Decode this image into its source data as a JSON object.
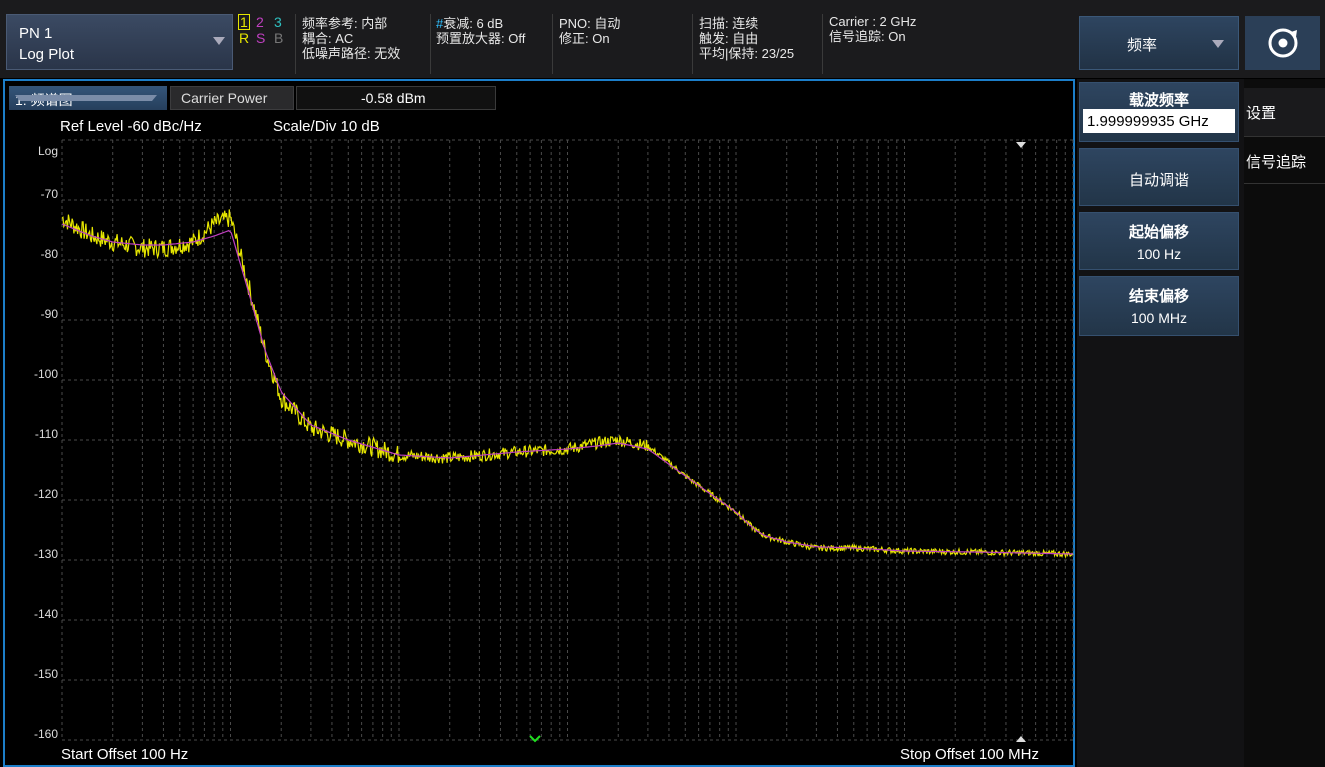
{
  "mode": {
    "line1": "PN 1",
    "line2": "Log Plot"
  },
  "traces": {
    "t1": "1",
    "t2": "2",
    "t3": "3",
    "r": "R",
    "s": "S",
    "b": "B"
  },
  "status": {
    "freq_ref": "频率参考: 内部",
    "coupling": "耦合: AC",
    "low_noise": "低噪声路径: 无效",
    "atten": "#衰减: 6 dB",
    "preamp": "预置放大器: Off",
    "pno": "PNO: 自动",
    "correction": "修正:  On",
    "sweep": "扫描: 连续",
    "trigger": "触发: 自由",
    "avg_hold": "平均|保持: 23/25",
    "carrier": "Carrier : 2 GHz",
    "tracking": "信号追踪: On"
  },
  "menu": {
    "freq_label": "频率",
    "config_icon": "settings-refresh-icon"
  },
  "plot": {
    "trace_select": "1: 频谱图",
    "meas_label": "Carrier Power",
    "meas_value": "-0.58 dBm",
    "ref_level": "Ref Level  -60 dBc/Hz",
    "scale_div": "Scale/Div  10 dB",
    "y_scale_type": "Log",
    "y_labels": [
      "-70",
      "-80",
      "-90",
      "-100",
      "-110",
      "-120",
      "-130",
      "-140",
      "-150",
      "-160"
    ],
    "start_offset": "Start Offset  100 Hz",
    "stop_offset": "Stop Offset  100 MHz"
  },
  "chart_data": {
    "type": "line",
    "x_scale": "log",
    "xlim": [
      100,
      100000000
    ],
    "ylim": [
      -160,
      -60
    ],
    "series": [
      {
        "color": "#e6e600",
        "x": [
          100,
          150,
          200,
          300,
          400,
          600,
          800,
          1000,
          1300,
          1600,
          2000,
          3000,
          5000,
          10000,
          20000,
          50000,
          100000,
          150000,
          200000,
          300000,
          500000,
          1000000,
          1300000,
          1500000,
          2000000,
          3000000,
          5000000,
          10000000,
          30000000,
          100000000
        ],
        "y": [
          -73,
          -76,
          -77,
          -78,
          -78,
          -77,
          -74,
          -73,
          -85,
          -95,
          -103,
          -108,
          -110,
          -112.5,
          -113,
          -112,
          -111.5,
          -110.5,
          -110,
          -111,
          -116,
          -122,
          -125,
          -126,
          -127,
          -128,
          -128,
          -128.5,
          -128.7,
          -129
        ]
      },
      {
        "color": "#c040c0",
        "x": [
          100,
          150,
          200,
          300,
          400,
          600,
          800,
          1000,
          1300,
          1600,
          2000,
          3000,
          5000,
          10000,
          20000,
          50000,
          100000,
          150000,
          200000,
          300000,
          500000,
          1000000,
          1300000,
          1500000,
          2000000,
          3000000,
          5000000,
          10000000,
          30000000,
          100000000
        ],
        "y": [
          -74,
          -76,
          -77,
          -77.5,
          -77.5,
          -77,
          -76,
          -75,
          -86,
          -95,
          -102,
          -107.5,
          -110,
          -112.5,
          -113,
          -112,
          -111.5,
          -111,
          -110.5,
          -111.5,
          -116,
          -122,
          -125,
          -126,
          -127,
          -127.8,
          -128,
          -128.5,
          -128.7,
          -129
        ]
      }
    ]
  },
  "side": {
    "carrier_freq_label": "载波频率",
    "carrier_freq_value": "1.999999935 GHz",
    "auto_tune": "自动调谐",
    "start_offset_label": "起始偏移",
    "start_offset_value": "100 Hz",
    "stop_offset_label": "结束偏移",
    "stop_offset_value": "100 MHz",
    "tab_settings": "设置",
    "tab_tracking": "信号追踪"
  }
}
